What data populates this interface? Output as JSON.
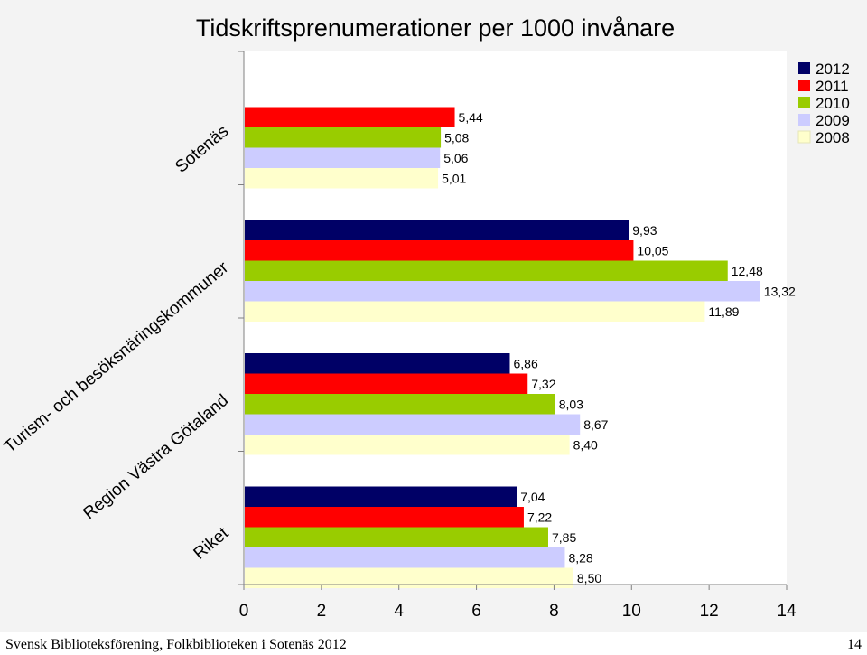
{
  "chart_data": {
    "type": "bar",
    "orientation": "horizontal",
    "title": "Tidskriftsprenumerationer per 1000 invånare",
    "categories": [
      "Sotenäs",
      "Turism- och besöksnäringskommuner",
      "Region Västra Götaland",
      "Riket"
    ],
    "series": [
      {
        "name": "2012",
        "color": "#000066",
        "values": [
          null,
          9.93,
          6.86,
          7.04
        ],
        "labels": [
          "",
          "9,93",
          "6,86",
          "7,04"
        ]
      },
      {
        "name": "2011",
        "color": "#ff0000",
        "values": [
          5.44,
          10.05,
          7.32,
          7.22
        ],
        "labels": [
          "5,44",
          "10,05",
          "7,32",
          "7,22"
        ]
      },
      {
        "name": "2010",
        "color": "#99cc00",
        "values": [
          5.08,
          12.48,
          8.03,
          7.85
        ],
        "labels": [
          "5,08",
          "12,48",
          "8,03",
          "7,85"
        ]
      },
      {
        "name": "2009",
        "color": "#ccccff",
        "values": [
          5.06,
          13.32,
          8.67,
          8.28
        ],
        "labels": [
          "5,06",
          "13,32",
          "8,67",
          "8,28"
        ]
      },
      {
        "name": "2008",
        "color": "#ffffcc",
        "values": [
          5.01,
          11.89,
          8.4,
          8.5
        ],
        "labels": [
          "5,01",
          "11,89",
          "8,40",
          "8,50"
        ]
      }
    ],
    "xlim": [
      0,
      14
    ],
    "xticks": [
      0,
      2,
      4,
      6,
      8,
      10,
      12,
      14
    ],
    "grid": false,
    "legend": "top-right"
  },
  "footer": {
    "left": "Svensk Biblioteksförening, Folkbiblioteken i Sotenäs 2012",
    "page": "14"
  }
}
